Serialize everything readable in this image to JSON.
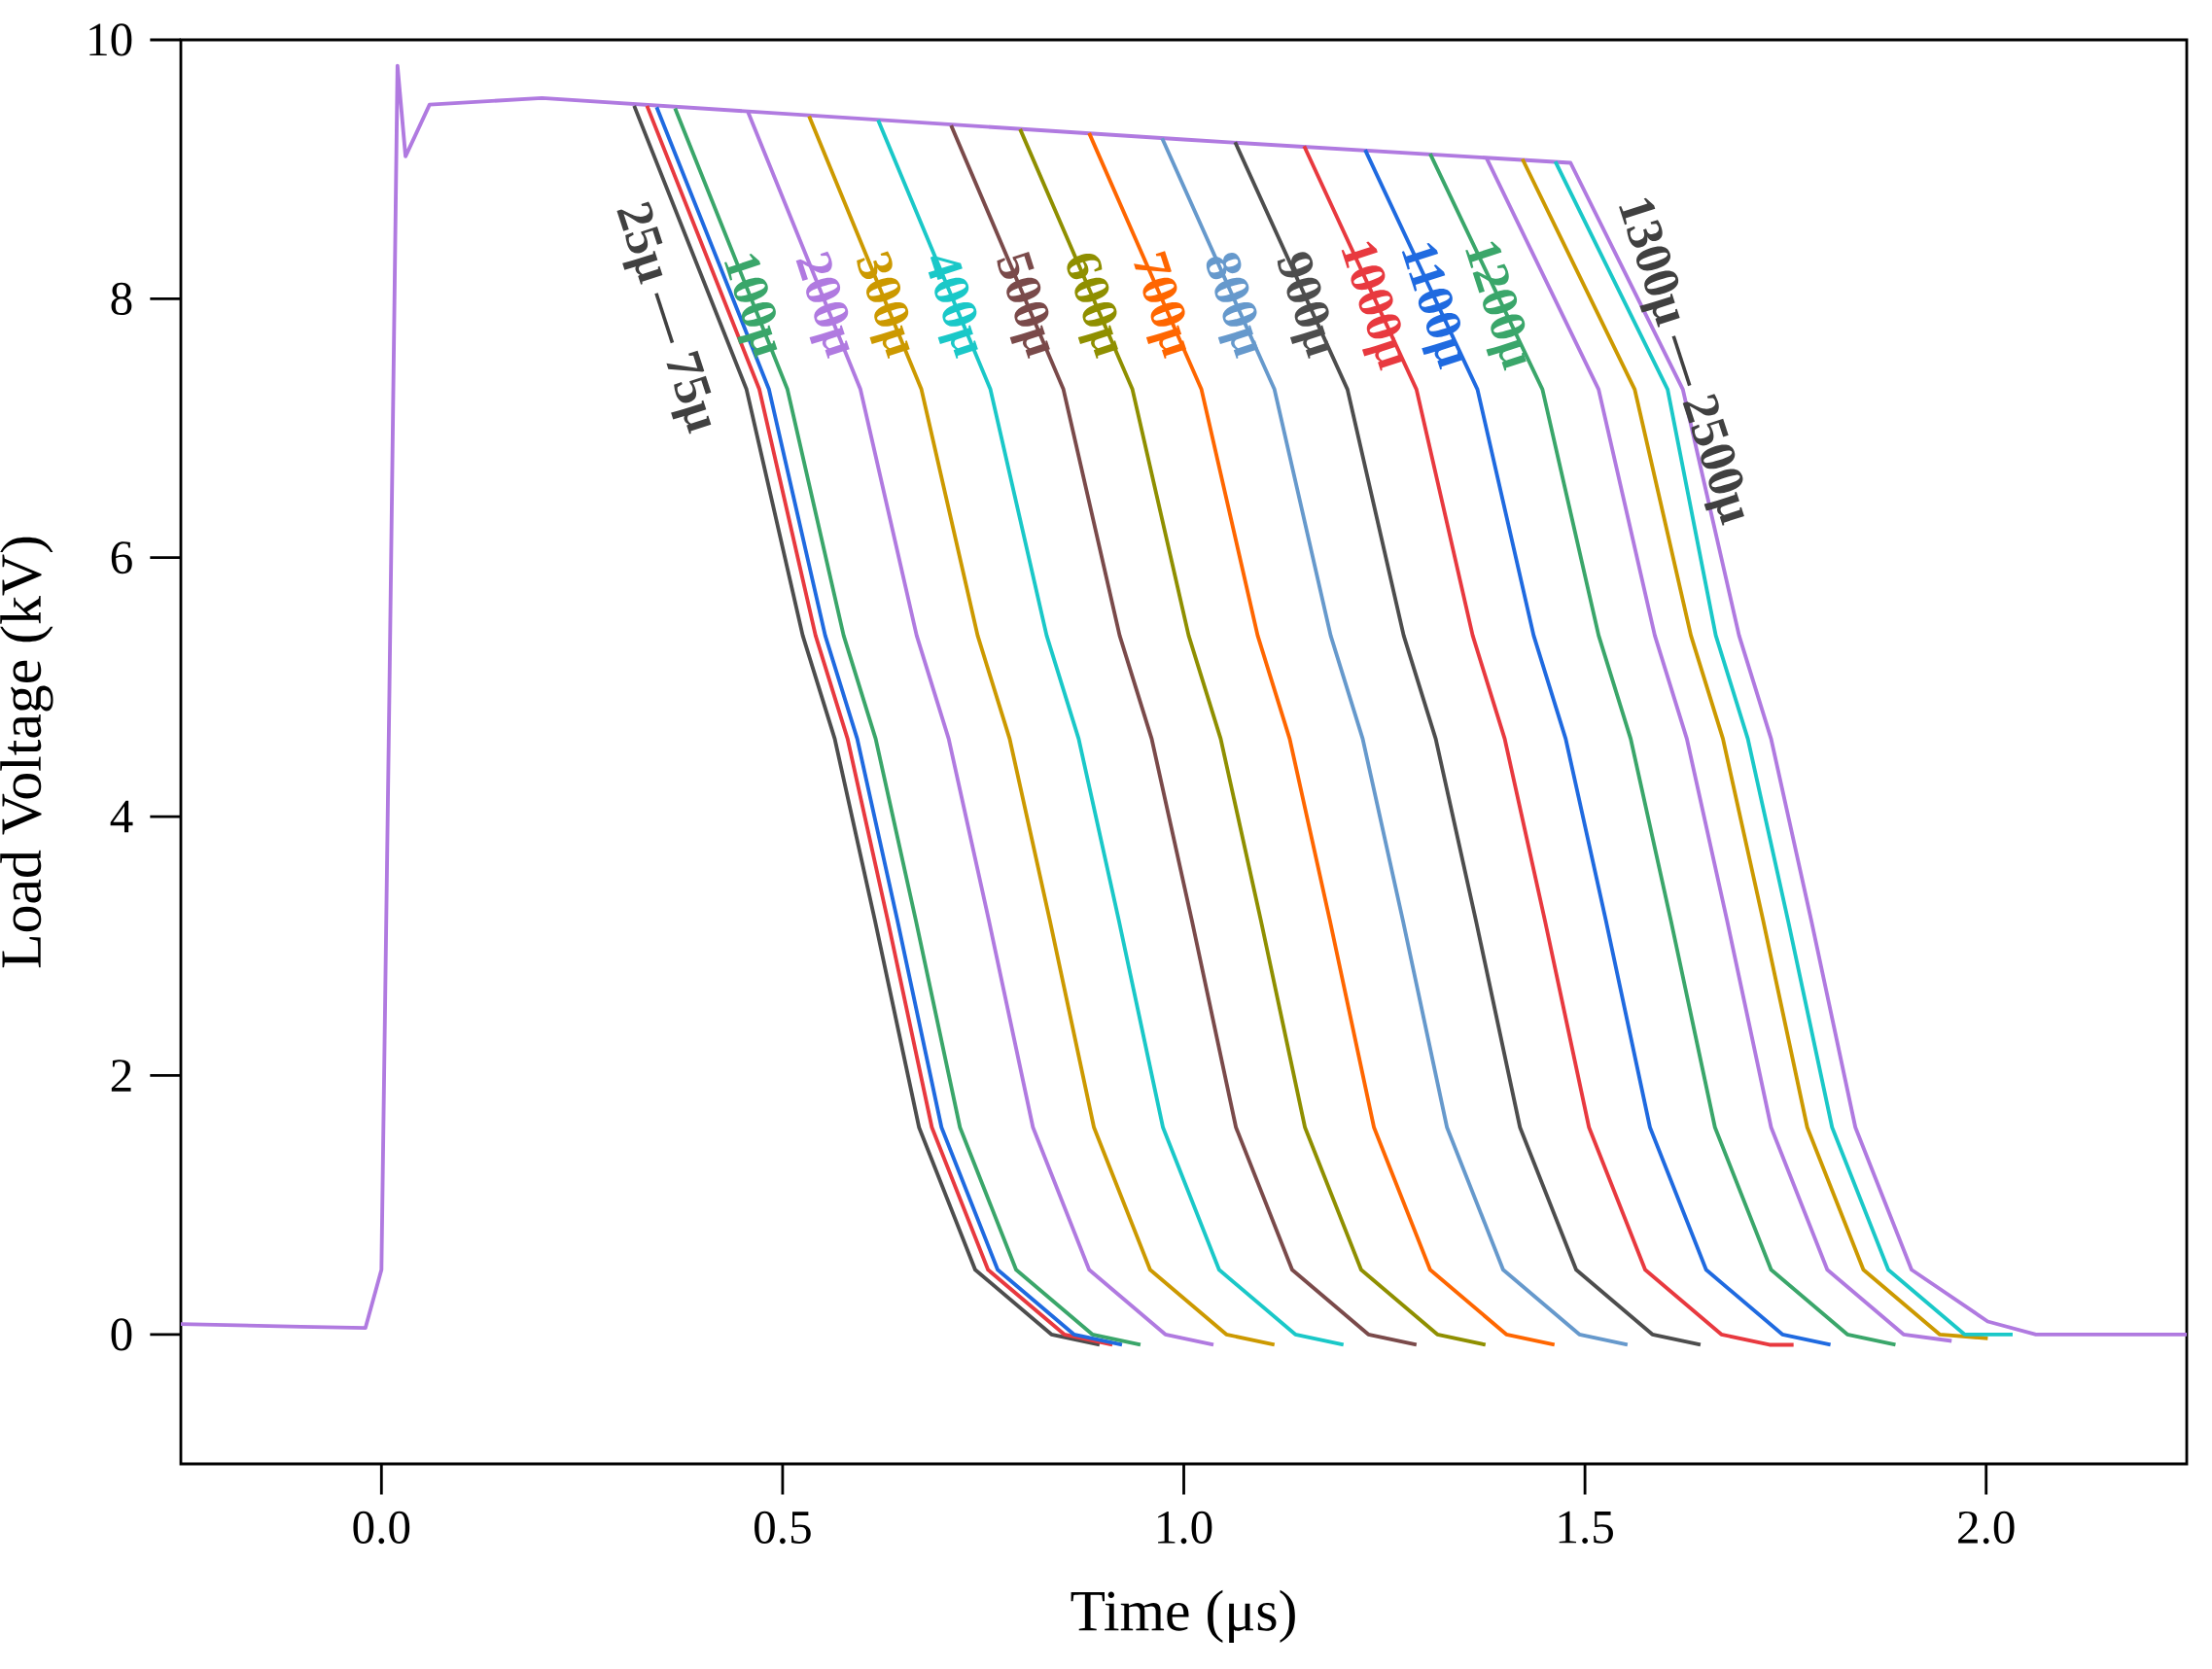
{
  "chart_data": {
    "type": "line",
    "xlabel": "Time (μs)",
    "ylabel": "Load Voltage (kV)",
    "xlim": [
      -0.25,
      2.25
    ],
    "ylim": [
      -1,
      10
    ],
    "xticks": [
      {
        "value": 0,
        "label": "0.0"
      },
      {
        "value": 0.5,
        "label": "0.5"
      },
      {
        "value": 1,
        "label": "1.0"
      },
      {
        "value": 1.5,
        "label": "1.5"
      },
      {
        "value": 2,
        "label": "2.0"
      }
    ],
    "yticks": [
      0,
      2,
      4,
      6,
      8,
      10
    ],
    "annotations": [
      "25μ — 75μ",
      "1300μ — 2500μ"
    ],
    "series": [
      {
        "color": "#b07ae0",
        "x": [
          -0.25,
          -0.1,
          -0.02,
          0.0,
          0.01,
          0.02,
          0.03,
          0.06,
          0.2,
          0.6,
          1.0,
          1.482,
          1.622,
          1.692,
          1.732,
          1.782,
          1.837,
          1.907,
          2.002,
          2.062,
          2.25
        ],
        "values": [
          0.08,
          0.06,
          0.05,
          0.5,
          5.0,
          9.8,
          9.1,
          9.5,
          9.55,
          9.39,
          9.23,
          9.05,
          7.3,
          5.4,
          4.6,
          3.2,
          1.6,
          0.5,
          0.1,
          0.0,
          0.0
        ]
      },
      {
        "color": "#4d4d4d",
        "x": [
          0.315,
          0.455,
          0.525,
          0.565,
          0.615,
          0.67,
          0.74,
          0.835,
          0.895
        ],
        "values": [
          9.49,
          7.3,
          5.4,
          4.6,
          3.2,
          1.6,
          0.5,
          0.0,
          -0.08
        ]
      },
      {
        "color": "#e8393f",
        "x": [
          0.331,
          0.471,
          0.541,
          0.581,
          0.631,
          0.686,
          0.756,
          0.851,
          0.911
        ],
        "values": [
          9.49,
          7.3,
          5.4,
          4.6,
          3.2,
          1.6,
          0.5,
          0.0,
          -0.08
        ]
      },
      {
        "color": "#1f6ae0",
        "x": [
          0.343,
          0.483,
          0.553,
          0.593,
          0.643,
          0.698,
          0.768,
          0.863,
          0.923
        ],
        "values": [
          9.48,
          7.3,
          5.4,
          4.6,
          3.2,
          1.6,
          0.5,
          0.0,
          -0.08
        ]
      },
      {
        "name": "100μ",
        "color": "#3aa66a",
        "x": [
          0.366,
          0.506,
          0.576,
          0.616,
          0.666,
          0.721,
          0.791,
          0.886,
          0.946
        ],
        "values": [
          9.47,
          7.3,
          5.4,
          4.6,
          3.2,
          1.6,
          0.5,
          0.0,
          -0.08
        ]
      },
      {
        "name": "200μ",
        "color": "#b07ae0",
        "x": [
          0.457,
          0.597,
          0.667,
          0.707,
          0.757,
          0.812,
          0.882,
          0.977,
          1.037
        ],
        "values": [
          9.44,
          7.3,
          5.4,
          4.6,
          3.2,
          1.6,
          0.5,
          0.0,
          -0.08
        ]
      },
      {
        "name": "300μ",
        "color": "#cc9900",
        "x": [
          0.533,
          0.673,
          0.743,
          0.783,
          0.833,
          0.888,
          0.958,
          1.053,
          1.113
        ],
        "values": [
          9.41,
          7.3,
          5.4,
          4.6,
          3.2,
          1.6,
          0.5,
          0.0,
          -0.08
        ]
      },
      {
        "name": "400μ",
        "color": "#1ac8c8",
        "x": [
          0.619,
          0.759,
          0.829,
          0.869,
          0.919,
          0.974,
          1.044,
          1.139,
          1.199
        ],
        "values": [
          9.38,
          7.3,
          5.4,
          4.6,
          3.2,
          1.6,
          0.5,
          0.0,
          -0.08
        ]
      },
      {
        "name": "500μ",
        "color": "#7a4a4a",
        "x": [
          0.71,
          0.85,
          0.92,
          0.96,
          1.01,
          1.065,
          1.135,
          1.23,
          1.29
        ],
        "values": [
          9.34,
          7.3,
          5.4,
          4.6,
          3.2,
          1.6,
          0.5,
          0.0,
          -0.08
        ]
      },
      {
        "name": "600μ",
        "color": "#8f8f00",
        "x": [
          0.796,
          0.936,
          1.006,
          1.046,
          1.096,
          1.151,
          1.221,
          1.316,
          1.376
        ],
        "values": [
          9.31,
          7.3,
          5.4,
          4.6,
          3.2,
          1.6,
          0.5,
          0.0,
          -0.08
        ]
      },
      {
        "name": "700μ",
        "color": "#ff6600",
        "x": [
          0.882,
          1.022,
          1.092,
          1.132,
          1.182,
          1.237,
          1.307,
          1.402,
          1.462
        ],
        "values": [
          9.28,
          7.3,
          5.4,
          4.6,
          3.2,
          1.6,
          0.5,
          0.0,
          -0.08
        ]
      },
      {
        "name": "800μ",
        "color": "#6699cc",
        "x": [
          0.973,
          1.113,
          1.183,
          1.223,
          1.273,
          1.328,
          1.398,
          1.493,
          1.553
        ],
        "values": [
          9.24,
          7.3,
          5.4,
          4.6,
          3.2,
          1.6,
          0.5,
          0.0,
          -0.08
        ]
      },
      {
        "name": "900μ",
        "color": "#4d4d4d",
        "x": [
          1.064,
          1.204,
          1.274,
          1.314,
          1.364,
          1.419,
          1.489,
          1.584,
          1.644
        ],
        "values": [
          9.21,
          7.3,
          5.4,
          4.6,
          3.2,
          1.6,
          0.5,
          0.0,
          -0.08
        ]
      },
      {
        "name": "1000μ",
        "color": "#e8393f",
        "x": [
          1.15,
          1.29,
          1.36,
          1.4,
          1.45,
          1.505,
          1.575,
          1.67,
          1.73,
          1.76
        ],
        "values": [
          9.18,
          7.3,
          5.4,
          4.6,
          3.2,
          1.6,
          0.5,
          0.0,
          -0.08,
          -0.08
        ]
      },
      {
        "name": "1100μ",
        "color": "#1f6ae0",
        "x": [
          1.226,
          1.366,
          1.436,
          1.476,
          1.526,
          1.581,
          1.651,
          1.746,
          1.806
        ],
        "values": [
          9.15,
          7.3,
          5.4,
          4.6,
          3.2,
          1.6,
          0.5,
          0.0,
          -0.08
        ]
      },
      {
        "name": "1200μ",
        "color": "#3aa66a",
        "x": [
          1.307,
          1.447,
          1.517,
          1.557,
          1.607,
          1.662,
          1.732,
          1.827,
          1.887
        ],
        "values": [
          9.12,
          7.3,
          5.4,
          4.6,
          3.2,
          1.6,
          0.5,
          0.0,
          -0.08
        ]
      },
      {
        "color": "#b07ae0",
        "x": [
          1.377,
          1.517,
          1.587,
          1.627,
          1.677,
          1.732,
          1.802,
          1.897,
          1.957
        ],
        "values": [
          9.09,
          7.3,
          5.4,
          4.6,
          3.2,
          1.6,
          0.5,
          0.0,
          -0.05
        ]
      },
      {
        "color": "#cc9900",
        "x": [
          1.422,
          1.562,
          1.632,
          1.672,
          1.722,
          1.777,
          1.847,
          1.942,
          2.002
        ],
        "values": [
          9.08,
          7.3,
          5.4,
          4.6,
          3.2,
          1.6,
          0.5,
          0.0,
          -0.03
        ]
      },
      {
        "color": "#1ac8c8",
        "x": [
          1.463,
          1.603,
          1.663,
          1.703,
          1.753,
          1.808,
          1.878,
          1.973,
          2.033
        ],
        "values": [
          9.06,
          7.3,
          5.4,
          4.6,
          3.2,
          1.6,
          0.5,
          0.0,
          0.0
        ]
      }
    ]
  }
}
